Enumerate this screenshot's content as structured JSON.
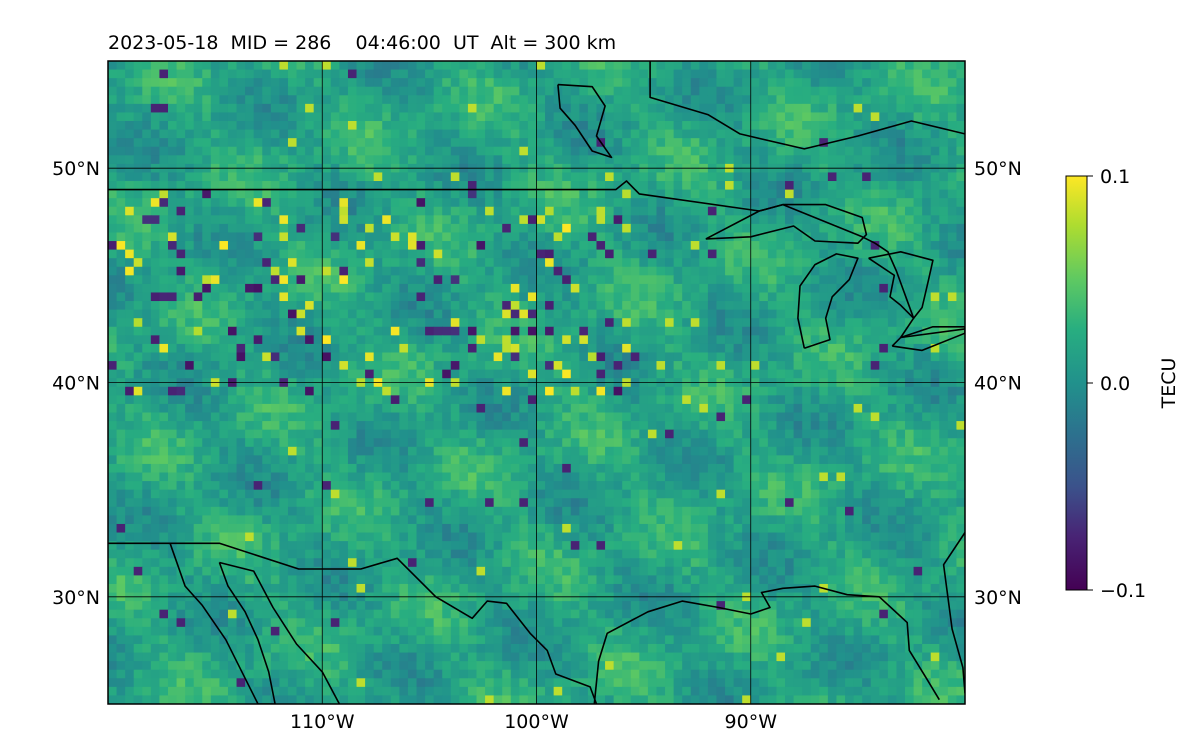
{
  "title": "2023-05-18  MID = 286    04:46:00  UT  Alt = 300 km",
  "colors": {
    "land_line": "#000000",
    "grid_line": "#000000",
    "colormap": "viridis"
  },
  "map": {
    "projection": "PlateCarree",
    "lon_range": [
      -120,
      -80
    ],
    "lat_range": [
      25,
      55
    ],
    "lat_ticks": [
      {
        "value": 50,
        "label": "50°N"
      },
      {
        "value": 40,
        "label": "40°N"
      },
      {
        "value": 30,
        "label": "30°N"
      }
    ],
    "lon_ticks": [
      {
        "value": -110,
        "label": "110°W"
      },
      {
        "value": -100,
        "label": "100°W"
      },
      {
        "value": -90,
        "label": "90°W"
      }
    ],
    "gridlines": true
  },
  "colorbar": {
    "label": "TECU",
    "vmin": -0.1,
    "vmax": 0.1,
    "ticks": [
      {
        "value": 0.1,
        "label": "0.1"
      },
      {
        "value": 0.0,
        "label": "0.0"
      },
      {
        "value": -0.1,
        "label": "−0.1"
      }
    ]
  },
  "features": {
    "us_canada_border": [
      [
        -120,
        49
      ],
      [
        -96.3,
        49
      ],
      [
        -95.8,
        49.4
      ],
      [
        -95.2,
        48.8
      ],
      [
        -89.6,
        48.0
      ],
      [
        -88.5,
        48.3
      ],
      [
        -84.8,
        46.8
      ],
      [
        -84.2,
        46.5
      ],
      [
        -83.6,
        46.1
      ],
      [
        -83.2,
        45.2
      ],
      [
        -82.4,
        43.0
      ],
      [
        -83.0,
        42.1
      ],
      [
        -80,
        42.5
      ]
    ],
    "mexico_border": [
      [
        -120,
        32.5
      ],
      [
        -117.1,
        32.5
      ],
      [
        -114.8,
        32.5
      ],
      [
        -111.1,
        31.3
      ],
      [
        -108.2,
        31.3
      ],
      [
        -106.5,
        31.8
      ],
      [
        -104.7,
        30.0
      ],
      [
        -103.0,
        29.0
      ],
      [
        -102.3,
        29.8
      ],
      [
        -101.4,
        29.7
      ],
      [
        -100.3,
        28.3
      ],
      [
        -99.5,
        27.5
      ],
      [
        -99.1,
        26.4
      ],
      [
        -97.5,
        25.8
      ],
      [
        -97.2,
        25.0
      ]
    ],
    "gulf_coast": [
      [
        -97.3,
        25.0
      ],
      [
        -97.1,
        27.0
      ],
      [
        -96.7,
        28.3
      ],
      [
        -94.8,
        29.3
      ],
      [
        -93.2,
        29.8
      ],
      [
        -91.5,
        29.5
      ],
      [
        -90.0,
        29.2
      ],
      [
        -89.1,
        29.5
      ],
      [
        -89.5,
        30.2
      ],
      [
        -88.5,
        30.4
      ],
      [
        -87.0,
        30.5
      ],
      [
        -85.5,
        30.1
      ],
      [
        -84.0,
        30.0
      ],
      [
        -82.7,
        28.8
      ],
      [
        -82.6,
        27.5
      ],
      [
        -81.8,
        26.2
      ],
      [
        -81.2,
        25.2
      ]
    ],
    "atlantic_coast": [
      [
        -80,
        33.0
      ],
      [
        -81.0,
        31.5
      ],
      [
        -80.6,
        28.5
      ],
      [
        -80.1,
        26.7
      ],
      [
        -80,
        25.5
      ]
    ],
    "baja_california": [
      [
        -117.1,
        32.5
      ],
      [
        -116.4,
        30.5
      ],
      [
        -115.6,
        29.6
      ],
      [
        -114.5,
        28.0
      ],
      [
        -113.8,
        26.6
      ],
      [
        -113.0,
        25.0
      ],
      [
        -112.2,
        25.0
      ],
      [
        -112.5,
        26.5
      ],
      [
        -113.0,
        28.0
      ],
      [
        -113.6,
        29.3
      ],
      [
        -114.4,
        30.5
      ],
      [
        -114.8,
        31.6
      ]
    ],
    "sonora_coast": [
      [
        -114.8,
        31.6
      ],
      [
        -113.2,
        31.2
      ],
      [
        -112.3,
        29.5
      ],
      [
        -111.2,
        27.8
      ],
      [
        -110.0,
        26.5
      ],
      [
        -109.2,
        25.0
      ]
    ],
    "hudson_bay_coast": [
      [
        -94.7,
        55
      ],
      [
        -94.7,
        53.3
      ],
      [
        -92.0,
        52.5
      ],
      [
        -90.5,
        51.6
      ],
      [
        -87.5,
        50.9
      ],
      [
        -85.0,
        51.5
      ],
      [
        -82.5,
        52.2
      ],
      [
        -80,
        51.6
      ]
    ],
    "lake_winnipeg": [
      [
        -99.0,
        53.9
      ],
      [
        -97.4,
        53.8
      ],
      [
        -96.8,
        52.9
      ],
      [
        -97.2,
        51.5
      ],
      [
        -96.5,
        50.5
      ],
      [
        -97.4,
        50.8
      ],
      [
        -98.2,
        52.0
      ],
      [
        -98.9,
        52.8
      ],
      [
        -99.0,
        53.9
      ]
    ],
    "lake_superior": [
      [
        -92.1,
        46.7
      ],
      [
        -90.0,
        46.8
      ],
      [
        -88.0,
        47.3
      ],
      [
        -87.0,
        46.6
      ],
      [
        -85.0,
        46.5
      ],
      [
        -84.6,
        46.9
      ],
      [
        -84.8,
        47.7
      ],
      [
        -86.5,
        48.3
      ],
      [
        -88.5,
        48.3
      ],
      [
        -89.6,
        48.0
      ],
      [
        -92.1,
        46.7
      ]
    ],
    "lake_michigan": [
      [
        -87.5,
        41.6
      ],
      [
        -87.8,
        43.0
      ],
      [
        -87.7,
        44.5
      ],
      [
        -87.0,
        45.5
      ],
      [
        -86.0,
        46.0
      ],
      [
        -85.0,
        45.8
      ],
      [
        -85.4,
        44.8
      ],
      [
        -86.2,
        44.0
      ],
      [
        -86.5,
        43.0
      ],
      [
        -86.3,
        42.0
      ],
      [
        -87.5,
        41.6
      ]
    ],
    "lake_huron": [
      [
        -84.5,
        45.8
      ],
      [
        -83.0,
        46.1
      ],
      [
        -81.5,
        45.7
      ],
      [
        -81.7,
        44.8
      ],
      [
        -82.0,
        43.5
      ],
      [
        -82.4,
        43.0
      ],
      [
        -83.0,
        43.6
      ],
      [
        -83.5,
        44.0
      ],
      [
        -83.3,
        45.0
      ],
      [
        -84.5,
        45.8
      ]
    ],
    "lake_erie": [
      [
        -83.4,
        41.7
      ],
      [
        -82.0,
        41.5
      ],
      [
        -80,
        42.3
      ],
      [
        -80,
        42.6
      ],
      [
        -81.5,
        42.6
      ],
      [
        -83.0,
        42.1
      ],
      [
        -83.4,
        41.7
      ]
    ]
  }
}
